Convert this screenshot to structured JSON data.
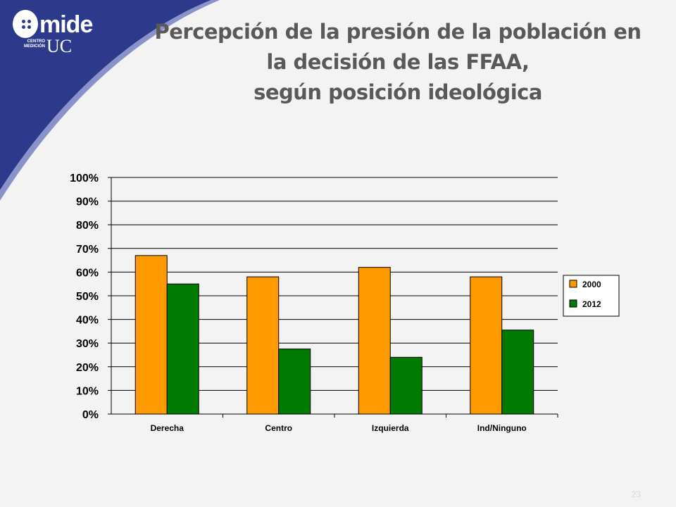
{
  "slide": {
    "title_lines": [
      "Percepción de la presión de la población en",
      "la decisión de las FFAA,",
      "según posición ideológica"
    ],
    "page_number": "23",
    "logo": {
      "top": "mide",
      "sub": "CENTRO MEDICIÓN",
      "uc": "UC"
    }
  },
  "colors": {
    "accent": "#2d3a8c",
    "series_2000": "#ff9900",
    "series_2012": "#007a00"
  },
  "chart_data": {
    "type": "bar",
    "categories": [
      "Derecha",
      "Centro",
      "Izquierda",
      "Ind/Ninguno"
    ],
    "series": [
      {
        "name": "2000",
        "values": [
          67,
          58,
          62,
          58
        ],
        "color": "#ff9900"
      },
      {
        "name": "2012",
        "values": [
          55,
          27.5,
          24,
          35.5
        ],
        "color": "#007a00"
      }
    ],
    "ylim": [
      0,
      100
    ],
    "yticks": [
      "0%",
      "10%",
      "20%",
      "30%",
      "40%",
      "50%",
      "60%",
      "70%",
      "80%",
      "90%",
      "100%"
    ],
    "grid": true,
    "legend": "right",
    "title": "",
    "xlabel": "",
    "ylabel": ""
  }
}
